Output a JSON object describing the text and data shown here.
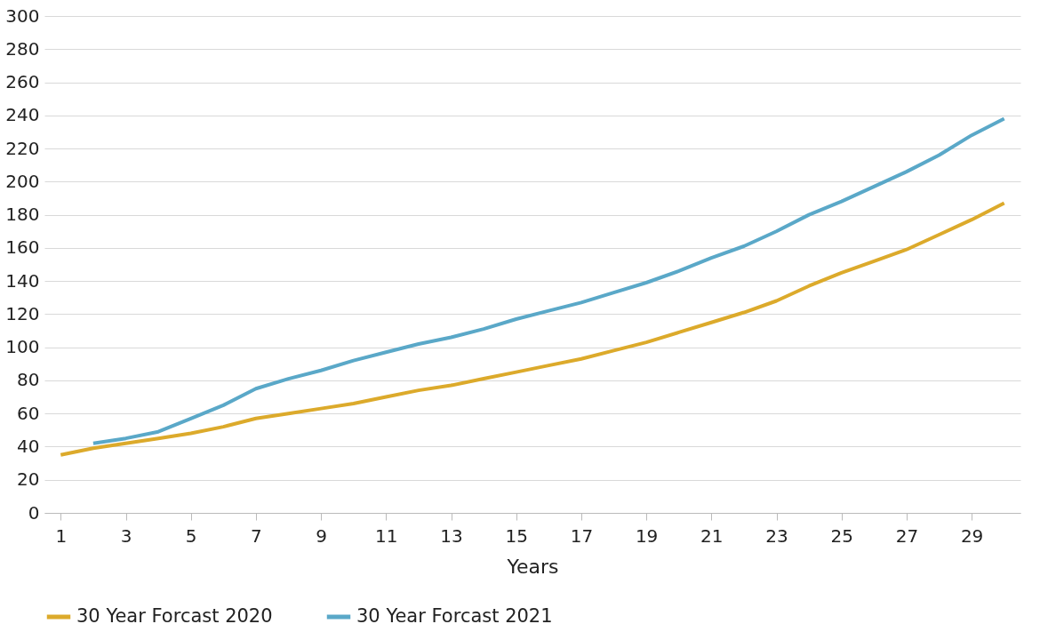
{
  "chart_data": {
    "type": "line",
    "xlabel": "Years",
    "x": [
      1,
      2,
      3,
      4,
      5,
      6,
      7,
      8,
      9,
      10,
      11,
      12,
      13,
      14,
      15,
      16,
      17,
      18,
      19,
      20,
      21,
      22,
      23,
      24,
      25,
      26,
      27,
      28,
      29,
      30
    ],
    "xlim": [
      0.5,
      30.5
    ],
    "xticks": [
      1,
      3,
      5,
      7,
      9,
      11,
      13,
      15,
      17,
      19,
      21,
      23,
      25,
      27,
      29
    ],
    "series": [
      {
        "name": "30 Year Forcast 2020",
        "color": "#dcaa2b",
        "values": [
          35,
          39,
          42,
          45,
          48,
          52,
          57,
          60,
          63,
          66,
          70,
          74,
          77,
          81,
          85,
          89,
          93,
          98,
          103,
          109,
          115,
          121,
          128,
          137,
          145,
          152,
          159,
          168,
          177,
          187
        ]
      },
      {
        "name": "30 Year Forcast 2021",
        "color": "#5aa8c8",
        "values": [
          null,
          42,
          45,
          49,
          57,
          65,
          75,
          81,
          86,
          92,
          97,
          102,
          106,
          111,
          117,
          122,
          127,
          133,
          139,
          146,
          154,
          161,
          170,
          180,
          188,
          197,
          206,
          216,
          228,
          238
        ]
      }
    ],
    "ylim": [
      0,
      300
    ],
    "yticks": [
      0,
      20,
      40,
      60,
      80,
      100,
      120,
      140,
      160,
      180,
      200,
      220,
      240,
      260,
      280,
      300
    ],
    "grid": "y",
    "legend": "bottom",
    "marker": "none",
    "line_style": "solid"
  }
}
